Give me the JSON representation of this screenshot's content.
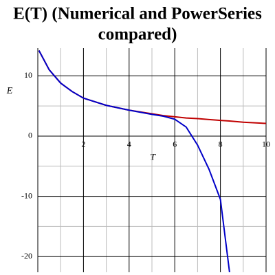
{
  "chart_data": {
    "type": "line",
    "title": [
      "E(T) (Numerical and PowerSeries",
      "compared)"
    ],
    "x_label": "T",
    "y_label": "E",
    "x": [
      0.05,
      0.5,
      1,
      1.5,
      2,
      3,
      4,
      5,
      5.5,
      6,
      6.5,
      7,
      7.5,
      8,
      8.4,
      9,
      10
    ],
    "series": [
      {
        "name": "Numerical",
        "color": "#c00000",
        "values": [
          14.2,
          11,
          8.8,
          7.4,
          6.3,
          5.1,
          4.3,
          3.7,
          3.4,
          3.2,
          3.0,
          2.9,
          2.75,
          2.6,
          2.5,
          2.3,
          2.1
        ]
      },
      {
        "name": "PowerSeries",
        "color": "#0000c8",
        "values": [
          14.2,
          11,
          8.8,
          7.4,
          6.3,
          5.1,
          4.3,
          3.6,
          3.3,
          2.8,
          1.5,
          -1.5,
          -5.5,
          -10.5,
          -22.6,
          null,
          null
        ]
      }
    ],
    "xlim": [
      0,
      10
    ],
    "ylim": [
      -22.6,
      14.6
    ],
    "xticks": [
      2,
      4,
      6,
      8,
      10
    ],
    "yticks": [
      -20,
      -10,
      0,
      10
    ],
    "grid": true
  }
}
